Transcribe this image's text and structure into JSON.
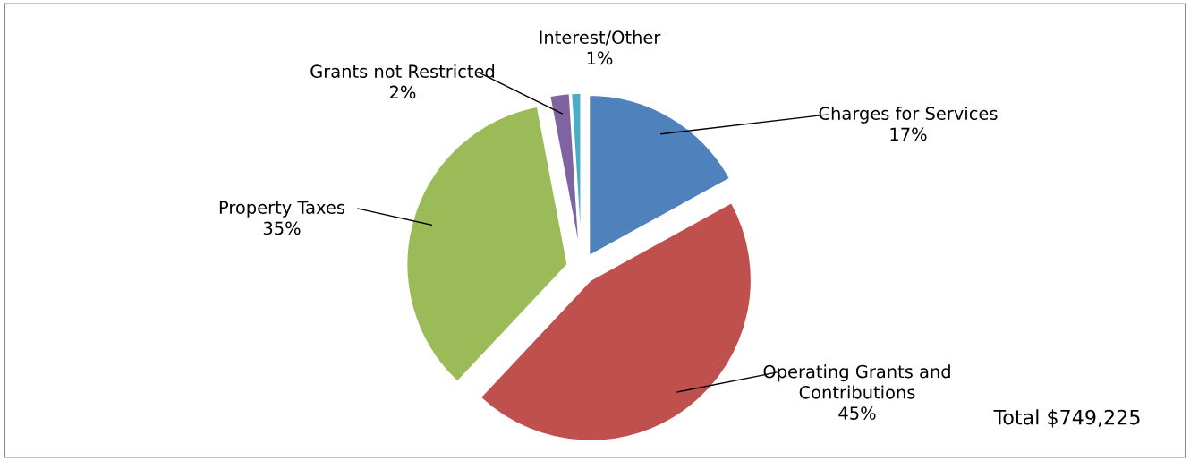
{
  "chart_data": {
    "type": "pie",
    "categories": [
      "Charges for Services",
      "Operating Grants and\nContributions",
      "Property Taxes",
      "Grants not Restricted",
      "Interest/Other"
    ],
    "values": [
      17,
      45,
      35,
      2,
      1
    ],
    "colors": [
      "#4f81bd",
      "#c0504d",
      "#9bbb59",
      "#8064a2",
      "#4bacc6"
    ],
    "value_labels": [
      "17%",
      "45%",
      "35%",
      "2%",
      "1%"
    ],
    "annotations": [
      "Total $749,225"
    ]
  }
}
